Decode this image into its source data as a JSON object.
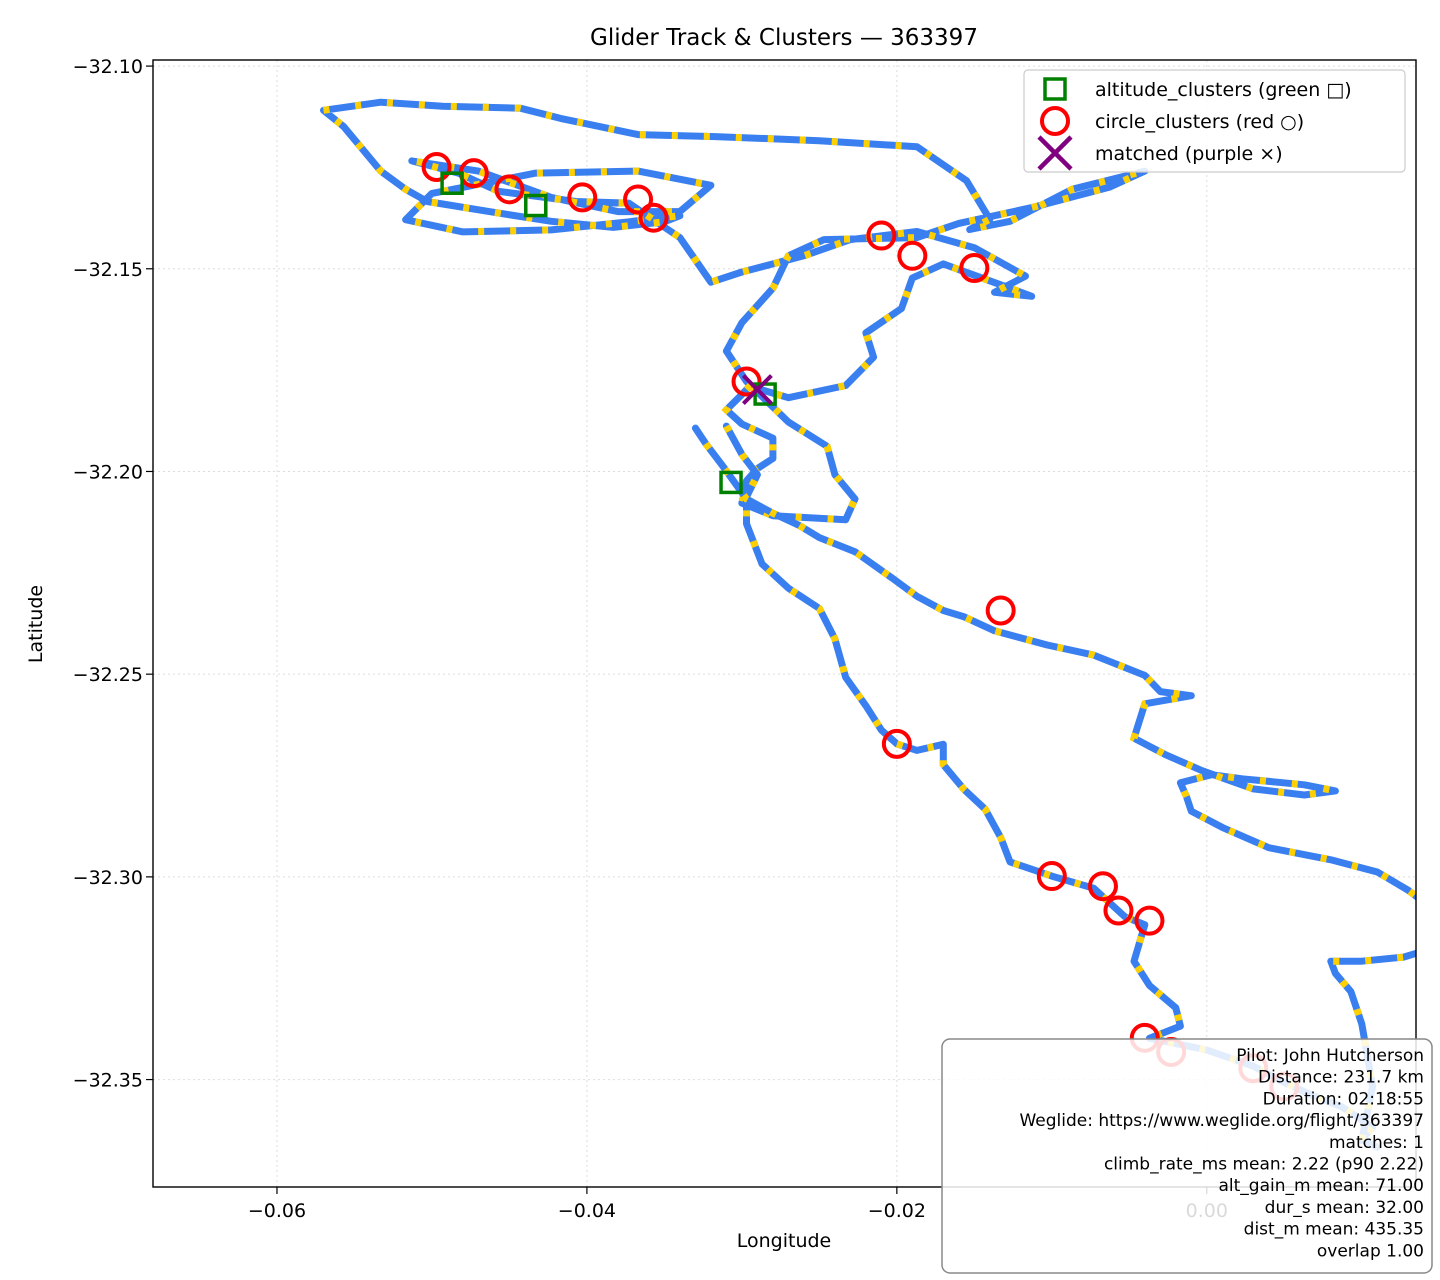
{
  "chart_data": {
    "type": "scatter",
    "title": "Glider Track & Clusters — 363397",
    "xlabel": "Longitude",
    "ylabel": "Latitude",
    "xlim": [
      -0.068,
      0.0135
    ],
    "ylim": [
      -32.3765,
      -32.0985
    ],
    "xticks": [
      -0.06,
      -0.04,
      -0.02,
      0.0
    ],
    "xtick_labels": [
      "−0.06",
      "−0.04",
      "−0.02",
      "0.00"
    ],
    "yticks": [
      -32.1,
      -32.15,
      -32.2,
      -32.25,
      -32.3,
      -32.35
    ],
    "ytick_labels": [
      "−32.10",
      "−32.15",
      "−32.20",
      "−32.25",
      "−32.30",
      "−32.35"
    ],
    "grid": true,
    "legend_position": "upper right",
    "colors": {
      "track_glide": "#3a7ff0",
      "track_climb": "#ffd000",
      "altitude_clusters": "#008000",
      "circle_clusters": "#ff0000",
      "matched": "#800080"
    },
    "series": [
      {
        "name": "altitude_clusters (green □)",
        "marker": "square",
        "x": [
          -0.0487,
          -0.0433,
          -0.0285,
          -0.0307
        ],
        "y": [
          -32.1289,
          -32.1344,
          -32.1809,
          -32.2027
        ]
      },
      {
        "name": "circle_clusters (red ○)",
        "marker": "circle",
        "x": [
          -0.0497,
          -0.0473,
          -0.045,
          -0.0403,
          -0.0367,
          -0.0357,
          -0.021,
          -0.019,
          -0.015,
          -0.0297,
          -0.0133,
          -0.02,
          -0.01,
          -0.0067,
          -0.0057,
          -0.0037,
          -0.004,
          -0.0023,
          0.003,
          0.005
        ],
        "y": [
          -32.1249,
          -32.1264,
          -32.1304,
          -32.1324,
          -32.1329,
          -32.1374,
          -32.1418,
          -32.1468,
          -32.1498,
          -32.1778,
          -32.2343,
          -32.2672,
          -32.2998,
          -32.3023,
          -32.3083,
          -32.3108,
          -32.3397,
          -32.3432,
          -32.3472,
          -32.3517
        ]
      },
      {
        "name": "matched (purple ×)",
        "marker": "x",
        "x": [
          -0.029
        ],
        "y": [
          -32.1798
        ]
      }
    ],
    "track": [
      [
        -0.057,
        -32.1109
      ],
      [
        -0.0533,
        -32.1089
      ],
      [
        -0.0493,
        -32.1099
      ],
      [
        -0.0443,
        -32.1104
      ],
      [
        -0.0417,
        -32.1129
      ],
      [
        -0.0367,
        -32.1169
      ],
      [
        -0.0317,
        -32.1174
      ],
      [
        -0.025,
        -32.1184
      ],
      [
        -0.0187,
        -32.1199
      ],
      [
        -0.0155,
        -32.1283
      ],
      [
        -0.014,
        -32.1378
      ],
      [
        -0.0153,
        -32.1403
      ],
      [
        -0.0127,
        -32.1383
      ],
      [
        -0.0087,
        -32.1304
      ],
      [
        -0.004,
        -32.1259
      ],
      [
        -0.0063,
        -32.1299
      ],
      [
        -0.0113,
        -32.1349
      ],
      [
        -0.016,
        -32.1388
      ],
      [
        -0.0187,
        -32.1423
      ],
      [
        -0.0247,
        -32.1428
      ],
      [
        -0.027,
        -32.1468
      ],
      [
        -0.028,
        -32.1548
      ],
      [
        -0.03,
        -32.1633
      ],
      [
        -0.031,
        -32.1703
      ],
      [
        -0.0297,
        -32.1778
      ],
      [
        -0.027,
        -32.1878
      ],
      [
        -0.0245,
        -32.1938
      ],
      [
        -0.024,
        -32.2008
      ],
      [
        -0.0227,
        -32.2068
      ],
      [
        -0.0233,
        -32.2119
      ],
      [
        -0.028,
        -32.2109
      ],
      [
        -0.03,
        -32.2078
      ],
      [
        -0.0297,
        -32.2023
      ],
      [
        -0.029,
        -32.1993
      ],
      [
        -0.028,
        -32.1968
      ],
      [
        -0.028,
        -32.1918
      ],
      [
        -0.03,
        -32.1883
      ],
      [
        -0.031,
        -32.1848
      ],
      [
        -0.03,
        -32.181
      ],
      [
        -0.0295,
        -32.179
      ],
      [
        -0.027,
        -32.1818
      ],
      [
        -0.0233,
        -32.1788
      ],
      [
        -0.0215,
        -32.1718
      ],
      [
        -0.022,
        -32.1658
      ],
      [
        -0.0197,
        -32.1598
      ],
      [
        -0.019,
        -32.1523
      ],
      [
        -0.017,
        -32.1488
      ],
      [
        -0.0127,
        -32.1548
      ],
      [
        -0.0113,
        -32.1568
      ],
      [
        -0.0137,
        -32.1558
      ],
      [
        -0.0117,
        -32.1518
      ],
      [
        -0.015,
        -32.1448
      ],
      [
        -0.0187,
        -32.1408
      ],
      [
        -0.023,
        -32.1428
      ],
      [
        -0.026,
        -32.1468
      ],
      [
        -0.03,
        -32.1508
      ],
      [
        -0.032,
        -32.1533
      ],
      [
        -0.034,
        -32.1423
      ],
      [
        -0.0373,
        -32.1338
      ],
      [
        -0.0407,
        -32.1334
      ],
      [
        -0.0457,
        -32.1309
      ],
      [
        -0.0483,
        -32.1264
      ],
      [
        -0.0513,
        -32.1234
      ],
      [
        -0.047,
        -32.1259
      ],
      [
        -0.0423,
        -32.1324
      ],
      [
        -0.038,
        -32.1359
      ],
      [
        -0.034,
        -32.1359
      ],
      [
        -0.032,
        -32.1294
      ],
      [
        -0.0367,
        -32.1259
      ],
      [
        -0.0433,
        -32.1264
      ],
      [
        -0.05,
        -32.1314
      ],
      [
        -0.0517,
        -32.1379
      ],
      [
        -0.048,
        -32.1409
      ],
      [
        -0.0423,
        -32.1404
      ],
      [
        -0.0373,
        -32.1384
      ],
      [
        -0.034,
        -32.1369
      ],
      [
        -0.035,
        -32.1384
      ],
      [
        -0.0383,
        -32.1398
      ],
      [
        -0.0423,
        -32.1383
      ],
      [
        -0.0463,
        -32.1359
      ],
      [
        -0.0503,
        -32.1334
      ],
      [
        -0.0517,
        -32.1304
      ],
      [
        -0.0533,
        -32.1259
      ],
      [
        -0.0557,
        -32.1149
      ],
      [
        -0.057,
        -32.1109
      ]
    ],
    "track2": [
      [
        -0.031,
        -32.1888
      ],
      [
        -0.03,
        -32.1958
      ],
      [
        -0.029,
        -32.2008
      ],
      [
        -0.0297,
        -32.2063
      ],
      [
        -0.0297,
        -32.2129
      ],
      [
        -0.0287,
        -32.2228
      ],
      [
        -0.027,
        -32.2288
      ],
      [
        -0.025,
        -32.2338
      ],
      [
        -0.024,
        -32.2413
      ],
      [
        -0.0233,
        -32.2508
      ],
      [
        -0.022,
        -32.2578
      ],
      [
        -0.021,
        -32.2638
      ],
      [
        -0.02,
        -32.2672
      ],
      [
        -0.0187,
        -32.2688
      ],
      [
        -0.017,
        -32.2673
      ],
      [
        -0.017,
        -32.2723
      ],
      [
        -0.0157,
        -32.2783
      ],
      [
        -0.0143,
        -32.2833
      ],
      [
        -0.0133,
        -32.2903
      ],
      [
        -0.0127,
        -32.2963
      ],
      [
        -0.01,
        -32.2998
      ],
      [
        -0.0073,
        -32.3028
      ],
      [
        -0.0053,
        -32.3098
      ],
      [
        -0.004,
        -32.3118
      ],
      [
        -0.0047,
        -32.3208
      ],
      [
        -0.0037,
        -32.3268
      ],
      [
        -0.002,
        -32.3323
      ],
      [
        -0.0017,
        -32.3368
      ],
      [
        -0.0037,
        -32.3398
      ],
      [
        0.0,
        -32.3427
      ],
      [
        0.003,
        -32.3467
      ],
      [
        0.005,
        -32.3507
      ],
      [
        0.0067,
        -32.3537
      ],
      [
        0.0087,
        -32.3567
      ],
      [
        0.0107,
        -32.3617
      ],
      [
        0.01,
        -32.3647
      ],
      [
        0.011,
        -32.3667
      ]
    ],
    "track3": [
      [
        0.01,
        -32.365
      ],
      [
        0.0107,
        -32.3517
      ],
      [
        0.0103,
        -32.3428
      ],
      [
        0.01,
        -32.3363
      ],
      [
        0.0093,
        -32.3283
      ],
      [
        0.0083,
        -32.3238
      ],
      [
        0.008,
        -32.3208
      ],
      [
        0.01,
        -32.3208
      ],
      [
        0.0127,
        -32.3198
      ],
      [
        0.014,
        -32.3183
      ],
      [
        0.0143,
        -32.3163
      ],
      [
        0.0147,
        -32.3123
      ],
      [
        0.0147,
        -32.3083
      ],
      [
        0.013,
        -32.3033
      ],
      [
        0.011,
        -32.2988
      ],
      [
        0.008,
        -32.2958
      ],
      [
        0.004,
        -32.2928
      ],
      [
        0.001,
        -32.2878
      ],
      [
        -0.001,
        -32.2838
      ],
      [
        -0.0013,
        -32.2803
      ],
      [
        -0.0017,
        -32.2768
      ],
      [
        0.0003,
        -32.2748
      ],
      [
        0.0023,
        -32.2758
      ],
      [
        0.0063,
        -32.2773
      ],
      [
        0.0083,
        -32.2788
      ],
      [
        0.0063,
        -32.2798
      ],
      [
        0.003,
        -32.2783
      ],
      [
        -0.0003,
        -32.2738
      ],
      [
        -0.0027,
        -32.2698
      ],
      [
        -0.0047,
        -32.2658
      ],
      [
        -0.004,
        -32.2573
      ],
      [
        -0.001,
        -32.2553
      ],
      [
        -0.003,
        -32.2543
      ],
      [
        -0.004,
        -32.2503
      ],
      [
        -0.0073,
        -32.2453
      ],
      [
        -0.0103,
        -32.2428
      ],
      [
        -0.0137,
        -32.2393
      ],
      [
        -0.0157,
        -32.2358
      ],
      [
        -0.017,
        -32.2343
      ],
      [
        -0.0187,
        -32.2308
      ],
      [
        -0.0203,
        -32.2263
      ],
      [
        -0.0227,
        -32.2198
      ],
      [
        -0.025,
        -32.2163
      ],
      [
        -0.0263,
        -32.2133
      ],
      [
        -0.028,
        -32.2103
      ],
      [
        -0.0297,
        -32.2068
      ],
      [
        -0.0313,
        -32.1983
      ],
      [
        -0.0323,
        -32.1933
      ],
      [
        -0.033,
        -32.1893
      ]
    ],
    "info_lines": [
      "Pilot: John Hutcherson",
      "Distance: 231.7 km",
      "Duration: 02:18:55",
      "Weglide: https://www.weglide.org/flight/363397",
      "matches: 1",
      "climb_rate_ms mean: 2.22 (p90 2.22)",
      "alt_gain_m mean: 71.00",
      "dur_s mean: 32.00",
      "dist_m mean: 435.35",
      "overlap 1.00"
    ]
  }
}
